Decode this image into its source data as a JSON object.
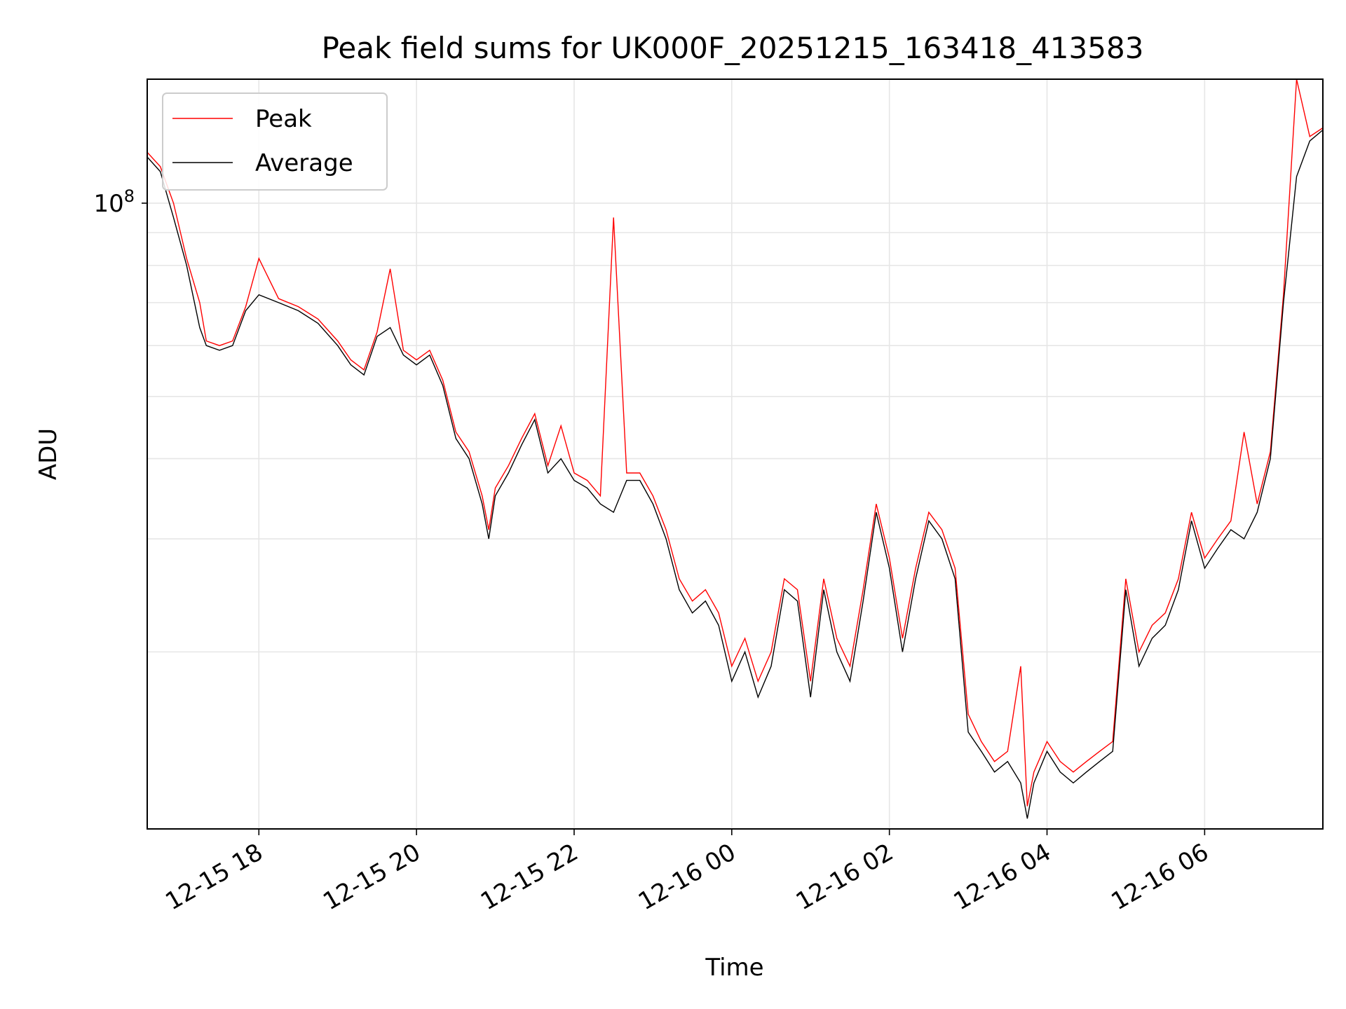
{
  "chart_data": {
    "type": "line",
    "title": "Peak field sums for UK000F_20251215_163418_413583",
    "xlabel": "Time",
    "ylabel": "ADU",
    "y_scale": "log",
    "ylim": [
      10600000,
      156000000
    ],
    "xlim": [
      "2025-12-15T16:35",
      "2025-12-16T07:30"
    ],
    "x_ticks": [
      "2025-12-15T18:00",
      "2025-12-15T20:00",
      "2025-12-15T22:00",
      "2025-12-16T00:00",
      "2025-12-16T02:00",
      "2025-12-16T04:00",
      "2025-12-16T06:00"
    ],
    "x_tick_labels": [
      "12-15 18",
      "12-15 20",
      "12-15 22",
      "12-16 00",
      "12-16 02",
      "12-16 04",
      "12-16 06"
    ],
    "y_tick_label": {
      "base": "10",
      "exponent": "8"
    },
    "grid": true,
    "legend": {
      "placement": "top-left",
      "entries": [
        "Peak",
        "Average"
      ]
    },
    "colors": {
      "Peak": "#ff0000",
      "Average": "#000000",
      "grid": "#e6e6e6"
    },
    "series": [
      {
        "name": "Average",
        "x": [
          "2025-12-15T16:35",
          "2025-12-15T16:45",
          "2025-12-15T16:55",
          "2025-12-15T17:05",
          "2025-12-15T17:15",
          "2025-12-15T17:20",
          "2025-12-15T17:30",
          "2025-12-15T17:40",
          "2025-12-15T17:50",
          "2025-12-15T18:00",
          "2025-12-15T18:15",
          "2025-12-15T18:30",
          "2025-12-15T18:45",
          "2025-12-15T19:00",
          "2025-12-15T19:10",
          "2025-12-15T19:20",
          "2025-12-15T19:30",
          "2025-12-15T19:40",
          "2025-12-15T19:50",
          "2025-12-15T20:00",
          "2025-12-15T20:10",
          "2025-12-15T20:20",
          "2025-12-15T20:30",
          "2025-12-15T20:40",
          "2025-12-15T20:50",
          "2025-12-15T20:55",
          "2025-12-15T21:00",
          "2025-12-15T21:10",
          "2025-12-15T21:20",
          "2025-12-15T21:30",
          "2025-12-15T21:40",
          "2025-12-15T21:50",
          "2025-12-15T22:00",
          "2025-12-15T22:10",
          "2025-12-15T22:20",
          "2025-12-15T22:30",
          "2025-12-15T22:40",
          "2025-12-15T22:50",
          "2025-12-15T23:00",
          "2025-12-15T23:10",
          "2025-12-15T23:20",
          "2025-12-15T23:30",
          "2025-12-15T23:40",
          "2025-12-15T23:50",
          "2025-12-16T00:00",
          "2025-12-16T00:10",
          "2025-12-16T00:20",
          "2025-12-16T00:30",
          "2025-12-16T00:40",
          "2025-12-16T00:50",
          "2025-12-16T01:00",
          "2025-12-16T01:10",
          "2025-12-16T01:20",
          "2025-12-16T01:30",
          "2025-12-16T01:40",
          "2025-12-16T01:50",
          "2025-12-16T02:00",
          "2025-12-16T02:10",
          "2025-12-16T02:20",
          "2025-12-16T02:30",
          "2025-12-16T02:40",
          "2025-12-16T02:50",
          "2025-12-16T03:00",
          "2025-12-16T03:10",
          "2025-12-16T03:20",
          "2025-12-16T03:30",
          "2025-12-16T03:40",
          "2025-12-16T03:45",
          "2025-12-16T03:50",
          "2025-12-16T04:00",
          "2025-12-16T04:10",
          "2025-12-16T04:20",
          "2025-12-16T04:30",
          "2025-12-16T04:40",
          "2025-12-16T04:50",
          "2025-12-16T05:00",
          "2025-12-16T05:10",
          "2025-12-16T05:20",
          "2025-12-16T05:30",
          "2025-12-16T05:40",
          "2025-12-16T05:50",
          "2025-12-16T06:00",
          "2025-12-16T06:10",
          "2025-12-16T06:20",
          "2025-12-16T06:30",
          "2025-12-16T06:40",
          "2025-12-16T06:50",
          "2025-12-16T07:00",
          "2025-12-16T07:10",
          "2025-12-16T07:20",
          "2025-12-16T07:30"
        ],
        "y": [
          118000000,
          112000000,
          95000000,
          80000000,
          64000000,
          60000000,
          59000000,
          60000000,
          68000000,
          72000000,
          70000000,
          68000000,
          65000000,
          60000000,
          56000000,
          54000000,
          62000000,
          64000000,
          58000000,
          56000000,
          58000000,
          52000000,
          43000000,
          40000000,
          34000000,
          30000000,
          35000000,
          38000000,
          42000000,
          46000000,
          38000000,
          40000000,
          37000000,
          36000000,
          34000000,
          33000000,
          37000000,
          37000000,
          34000000,
          30000000,
          25000000,
          23000000,
          24000000,
          22000000,
          18000000,
          20000000,
          17000000,
          19000000,
          25000000,
          24000000,
          17000000,
          25000000,
          20000000,
          18000000,
          24000000,
          33000000,
          27000000,
          20000000,
          26000000,
          32000000,
          30000000,
          26000000,
          15000000,
          14000000,
          13000000,
          13500000,
          12500000,
          11000000,
          12500000,
          14000000,
          13000000,
          12500000,
          13000000,
          13500000,
          14000000,
          25000000,
          19000000,
          21000000,
          22000000,
          25000000,
          32000000,
          27000000,
          29000000,
          31000000,
          30000000,
          33000000,
          40000000,
          70000000,
          110000000,
          125000000,
          130000000
        ]
      },
      {
        "name": "Peak",
        "x": [
          "2025-12-15T16:35",
          "2025-12-15T16:45",
          "2025-12-15T16:55",
          "2025-12-15T17:05",
          "2025-12-15T17:15",
          "2025-12-15T17:20",
          "2025-12-15T17:30",
          "2025-12-15T17:40",
          "2025-12-15T17:50",
          "2025-12-15T18:00",
          "2025-12-15T18:15",
          "2025-12-15T18:30",
          "2025-12-15T18:45",
          "2025-12-15T19:00",
          "2025-12-15T19:10",
          "2025-12-15T19:20",
          "2025-12-15T19:30",
          "2025-12-15T19:40",
          "2025-12-15T19:50",
          "2025-12-15T20:00",
          "2025-12-15T20:10",
          "2025-12-15T20:20",
          "2025-12-15T20:30",
          "2025-12-15T20:40",
          "2025-12-15T20:50",
          "2025-12-15T20:55",
          "2025-12-15T21:00",
          "2025-12-15T21:10",
          "2025-12-15T21:20",
          "2025-12-15T21:30",
          "2025-12-15T21:40",
          "2025-12-15T21:50",
          "2025-12-15T22:00",
          "2025-12-15T22:10",
          "2025-12-15T22:20",
          "2025-12-15T22:30",
          "2025-12-15T22:40",
          "2025-12-15T22:50",
          "2025-12-15T23:00",
          "2025-12-15T23:10",
          "2025-12-15T23:20",
          "2025-12-15T23:30",
          "2025-12-15T23:40",
          "2025-12-15T23:50",
          "2025-12-16T00:00",
          "2025-12-16T00:10",
          "2025-12-16T00:20",
          "2025-12-16T00:30",
          "2025-12-16T00:40",
          "2025-12-16T00:50",
          "2025-12-16T01:00",
          "2025-12-16T01:10",
          "2025-12-16T01:20",
          "2025-12-16T01:30",
          "2025-12-16T01:40",
          "2025-12-16T01:50",
          "2025-12-16T02:00",
          "2025-12-16T02:10",
          "2025-12-16T02:20",
          "2025-12-16T02:30",
          "2025-12-16T02:40",
          "2025-12-16T02:50",
          "2025-12-16T03:00",
          "2025-12-16T03:10",
          "2025-12-16T03:20",
          "2025-12-16T03:30",
          "2025-12-16T03:40",
          "2025-12-16T03:45",
          "2025-12-16T03:50",
          "2025-12-16T04:00",
          "2025-12-16T04:10",
          "2025-12-16T04:20",
          "2025-12-16T04:30",
          "2025-12-16T04:40",
          "2025-12-16T04:50",
          "2025-12-16T05:00",
          "2025-12-16T05:10",
          "2025-12-16T05:20",
          "2025-12-16T05:30",
          "2025-12-16T05:40",
          "2025-12-16T05:50",
          "2025-12-16T06:00",
          "2025-12-16T06:10",
          "2025-12-16T06:20",
          "2025-12-16T06:30",
          "2025-12-16T06:40",
          "2025-12-16T06:50",
          "2025-12-16T07:00",
          "2025-12-16T07:10",
          "2025-12-16T07:20",
          "2025-12-16T07:30"
        ],
        "y": [
          120000000,
          114000000,
          100000000,
          82000000,
          70000000,
          61000000,
          60000000,
          61000000,
          69000000,
          82000000,
          71000000,
          69000000,
          66000000,
          61000000,
          57000000,
          55000000,
          63000000,
          79000000,
          59000000,
          57000000,
          59000000,
          53000000,
          44000000,
          41000000,
          35000000,
          31000000,
          36000000,
          39000000,
          43000000,
          47000000,
          39000000,
          45000000,
          38000000,
          37000000,
          35000000,
          95000000,
          38000000,
          38000000,
          35000000,
          31000000,
          26000000,
          24000000,
          25000000,
          23000000,
          19000000,
          21000000,
          18000000,
          20000000,
          26000000,
          25000000,
          18000000,
          26000000,
          21000000,
          19000000,
          25000000,
          34000000,
          28000000,
          21000000,
          27000000,
          33000000,
          31000000,
          27000000,
          16000000,
          14500000,
          13500000,
          14000000,
          19000000,
          11500000,
          13000000,
          14500000,
          13500000,
          13000000,
          13500000,
          14000000,
          14500000,
          26000000,
          20000000,
          22000000,
          23000000,
          26000000,
          33000000,
          28000000,
          30000000,
          32000000,
          44000000,
          34000000,
          41000000,
          72000000,
          156000000,
          127000000,
          131000000
        ]
      }
    ]
  }
}
